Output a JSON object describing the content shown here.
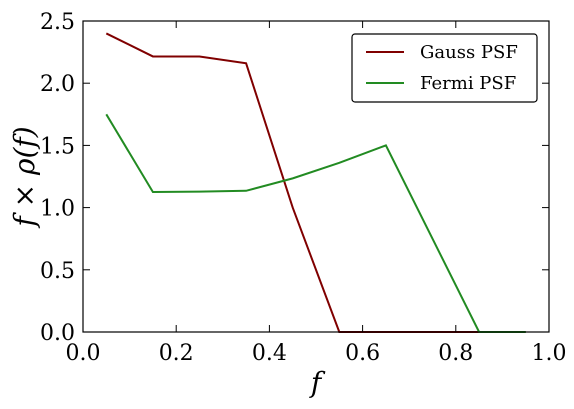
{
  "chart_data": {
    "type": "line",
    "xlabel": "f",
    "ylabel": "f × ρ(f)",
    "xlim": [
      0.0,
      1.0
    ],
    "ylim": [
      0.0,
      2.5
    ],
    "xticks": [
      0.0,
      0.2,
      0.4,
      0.6,
      0.8,
      1.0
    ],
    "xtick_labels": [
      "0.0",
      "0.2",
      "0.4",
      "0.6",
      "0.8",
      "1.0"
    ],
    "yticks": [
      0.0,
      0.5,
      1.0,
      1.5,
      2.0,
      2.5
    ],
    "ytick_labels": [
      "0.0",
      "0.5",
      "1.0",
      "1.5",
      "2.0",
      "2.5"
    ],
    "grid": false,
    "legend_position": "top-right",
    "series": [
      {
        "name": "Gauss PSF",
        "color": "#800000",
        "x": [
          0.05,
          0.15,
          0.25,
          0.35,
          0.45,
          0.55,
          0.65,
          0.75,
          0.85,
          0.95
        ],
        "y": [
          2.4,
          2.215,
          2.215,
          2.16,
          1.0,
          0.0,
          0.0,
          0.0,
          0.0,
          0.0
        ]
      },
      {
        "name": "Fermi PSF",
        "color": "#228b22",
        "x": [
          0.05,
          0.15,
          0.25,
          0.35,
          0.45,
          0.55,
          0.65,
          0.75,
          0.85,
          0.95
        ],
        "y": [
          1.75,
          1.125,
          1.128,
          1.135,
          1.235,
          1.36,
          1.5,
          0.75,
          0.0,
          0.0
        ]
      }
    ]
  }
}
